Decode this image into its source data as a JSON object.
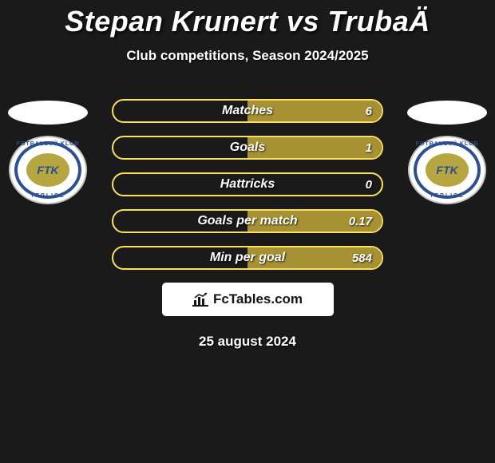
{
  "title": "Stepan Krunert vs TrubaÄ",
  "subtitle": "Club competitions, Season 2024/2025",
  "date": "25 august 2024",
  "brand": "FcTables.com",
  "colors": {
    "background": "#1a1a1a",
    "pill_border": "#fae05f",
    "pill_fill": "#a69234",
    "text": "#ffffff"
  },
  "club_badge": {
    "top_text": "FOTBALOVÝ KLUB",
    "center_text": "FTK",
    "bottom_text": "TEPLICE",
    "outer_color": "#ffffff",
    "ring_color": "#2d4f8f",
    "inner_color": "#b5a642"
  },
  "player_left": {
    "name": "Stepan Krunert"
  },
  "player_right": {
    "name": "TrubaÄ"
  },
  "stats": [
    {
      "label": "Matches",
      "left_val": "",
      "right_val": "6",
      "left_fill_pct": 0,
      "right_fill_pct": 100
    },
    {
      "label": "Goals",
      "left_val": "",
      "right_val": "1",
      "left_fill_pct": 0,
      "right_fill_pct": 100
    },
    {
      "label": "Hattricks",
      "left_val": "",
      "right_val": "0",
      "left_fill_pct": 0,
      "right_fill_pct": 0
    },
    {
      "label": "Goals per match",
      "left_val": "",
      "right_val": "0.17",
      "left_fill_pct": 0,
      "right_fill_pct": 100
    },
    {
      "label": "Min per goal",
      "left_val": "",
      "right_val": "584",
      "left_fill_pct": 0,
      "right_fill_pct": 100
    }
  ]
}
